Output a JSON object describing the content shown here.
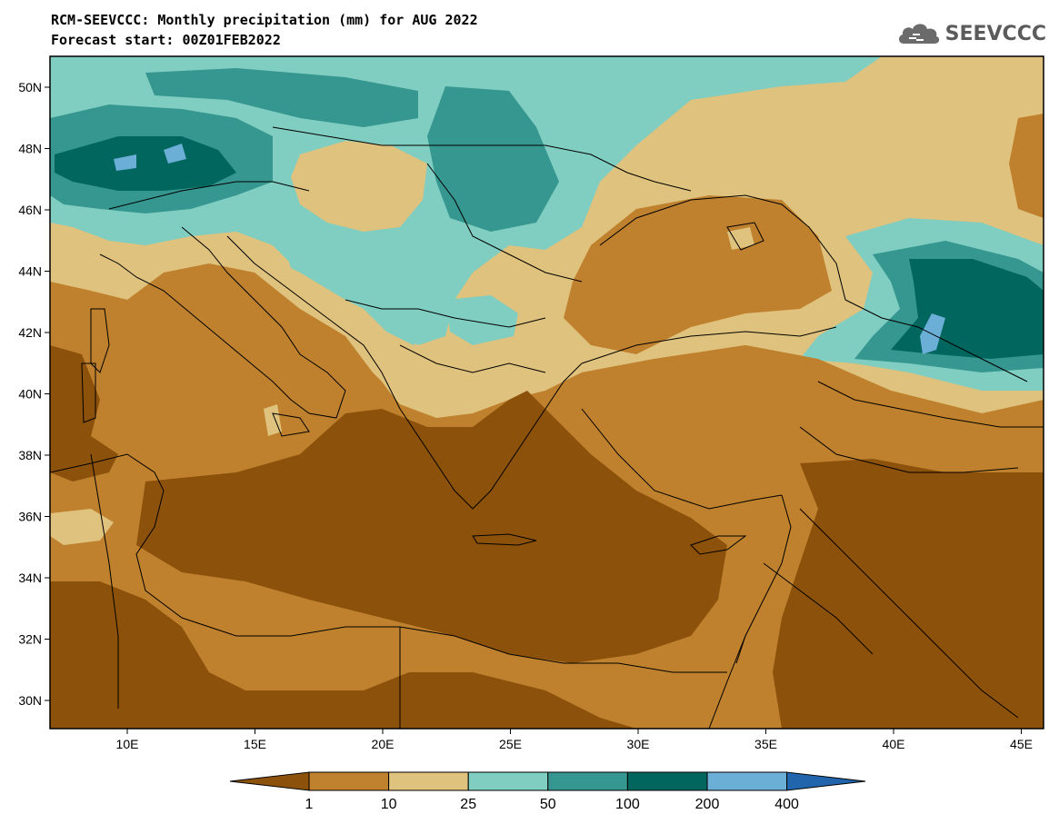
{
  "title_line1": "RCM-SEEVCCC: Monthly precipitation (mm) for AUG 2022",
  "title_line2": "Forecast start: 00Z01FEB2022",
  "logo_text": "SEEVCCC",
  "lat_ticks": [
    "50N",
    "48N",
    "46N",
    "44N",
    "42N",
    "40N",
    "38N",
    "36N",
    "34N",
    "32N",
    "30N"
  ],
  "lon_ticks": [
    "10E",
    "15E",
    "20E",
    "25E",
    "30E",
    "35E",
    "40E",
    "45E"
  ],
  "colorbar": {
    "labels": [
      "1",
      "10",
      "25",
      "50",
      "100",
      "200",
      "400"
    ],
    "colors": [
      "#8c510a",
      "#bf812d",
      "#dfc27d",
      "#80cdc1",
      "#35978f",
      "#01665e",
      "#6baed6",
      "#2166ac"
    ]
  }
}
